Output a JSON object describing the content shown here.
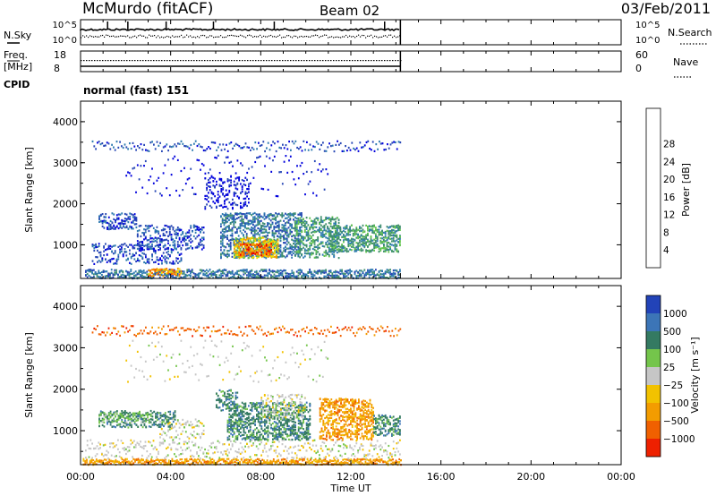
{
  "header": {
    "title": "McMurdo (fitACF)",
    "beam": "Beam 02",
    "date": "03/Feb/2011"
  },
  "status_panels": {
    "nsky_label": "N.Sky",
    "nsearch_label": "N.Search",
    "freq_label": "Freq.",
    "freq_unit": "[MHz]",
    "nave_label": "Nave",
    "cpid_label": "CPID",
    "cpid_text": "normal (fast) 151",
    "noise_ticks": [
      "10^5",
      "10^0"
    ],
    "freq_ticks": [
      "18",
      "8"
    ],
    "nave_ticks": [
      "60",
      "0"
    ]
  },
  "x_axis": {
    "label": "Time UT",
    "ticks": [
      "00:00",
      "04:00",
      "08:00",
      "12:00",
      "16:00",
      "20:00",
      "00:00"
    ]
  },
  "colors": {
    "power": [
      "#0000dd",
      "#2747b5",
      "#2e7bb0",
      "#3f8f6d",
      "#63c44f",
      "#f3dd00",
      "#f39a00",
      "#ff5a00",
      "#e60000"
    ],
    "velocity": [
      "#2243b8",
      "#3c75b7",
      "#347a62",
      "#74c54b",
      "#c6c6c6",
      "#f2c200",
      "#f39c00",
      "#f06000",
      "#ee2000"
    ]
  },
  "chart_data": [
    {
      "type": "heatmap",
      "panel": "power",
      "ylabel": "Slant Range [km]",
      "y_ticks": [
        1000,
        2000,
        3000,
        4000
      ],
      "ylim": [
        180,
        4500
      ],
      "xlim_hours": [
        0,
        24
      ],
      "data_end_hour": 14.2,
      "colorbar_label": "Power [dB]",
      "colorbar_ticks": [
        "4",
        "8",
        "12",
        "16",
        "20",
        "24",
        "28"
      ],
      "color_range": [
        0,
        32
      ],
      "features": [
        {
          "t0": 0.2,
          "t1": 14.2,
          "r0": 200,
          "r1": 420,
          "level": 2,
          "density": 0.75
        },
        {
          "t0": 0.5,
          "t1": 4.5,
          "r0": 550,
          "r1": 1050,
          "level": 1,
          "density": 0.35
        },
        {
          "t0": 0.8,
          "t1": 2.5,
          "r0": 1400,
          "r1": 1800,
          "level": 1,
          "density": 0.45
        },
        {
          "t0": 2.5,
          "t1": 5.5,
          "r0": 900,
          "r1": 1500,
          "level": 1,
          "density": 0.4
        },
        {
          "t0": 3.0,
          "t1": 4.5,
          "r0": 250,
          "r1": 450,
          "level": 6,
          "density": 0.55
        },
        {
          "t0": 5.5,
          "t1": 7.5,
          "r0": 1900,
          "r1": 2700,
          "level": 0,
          "density": 0.3
        },
        {
          "t0": 6.2,
          "t1": 9.8,
          "r0": 700,
          "r1": 1800,
          "level": 2,
          "density": 0.6
        },
        {
          "t0": 6.8,
          "t1": 8.8,
          "r0": 700,
          "r1": 1200,
          "level": 5,
          "density": 0.75
        },
        {
          "t0": 7.0,
          "t1": 8.5,
          "r0": 750,
          "r1": 1050,
          "level": 7,
          "density": 0.7
        },
        {
          "t0": 9.5,
          "t1": 11.5,
          "r0": 700,
          "r1": 1700,
          "level": 3,
          "density": 0.55
        },
        {
          "t0": 11.0,
          "t1": 14.2,
          "r0": 850,
          "r1": 1500,
          "level": 3,
          "density": 0.7
        },
        {
          "t0": 0.5,
          "t1": 14.2,
          "r0": 3300,
          "r1": 3550,
          "level": 1,
          "density": 0.1
        },
        {
          "t0": 2.0,
          "t1": 11.0,
          "r0": 2200,
          "r1": 3200,
          "level": 0,
          "density": 0.05
        }
      ]
    },
    {
      "type": "heatmap",
      "panel": "velocity",
      "ylabel": "Slant Range [km]",
      "y_ticks": [
        1000,
        2000,
        3000,
        4000
      ],
      "ylim": [
        180,
        4500
      ],
      "xlim_hours": [
        0,
        24
      ],
      "data_end_hour": 14.2,
      "colorbar_label": "Velocity [m s⁻¹]",
      "colorbar_ticks": [
        "1000",
        "500",
        "100",
        "25",
        "−25",
        "−100",
        "−500",
        "−1000"
      ],
      "color_range": [
        -1250,
        1250
      ],
      "features": [
        {
          "t0": 0.1,
          "t1": 14.2,
          "r0": 200,
          "r1": 340,
          "level": 6,
          "density": 0.95
        },
        {
          "t0": 0.2,
          "t1": 14.2,
          "r0": 350,
          "r1": 800,
          "level": 4,
          "density": 0.15
        },
        {
          "t0": 0.8,
          "t1": 4.2,
          "r0": 1100,
          "r1": 1500,
          "level": 2,
          "density": 0.55
        },
        {
          "t0": 0.8,
          "t1": 3.0,
          "r0": 1200,
          "r1": 1450,
          "level": 3,
          "density": 0.35
        },
        {
          "t0": 3.5,
          "t1": 5.5,
          "r0": 800,
          "r1": 1300,
          "level": 4,
          "density": 0.25
        },
        {
          "t0": 6.0,
          "t1": 7.0,
          "r0": 1500,
          "r1": 2000,
          "level": 2,
          "density": 0.5
        },
        {
          "t0": 6.5,
          "t1": 10.2,
          "r0": 800,
          "r1": 1700,
          "level": 2,
          "density": 0.7
        },
        {
          "t0": 8.0,
          "t1": 10.0,
          "r0": 1300,
          "r1": 1900,
          "level": 4,
          "density": 0.35
        },
        {
          "t0": 10.6,
          "t1": 13.0,
          "r0": 800,
          "r1": 1800,
          "level": 6,
          "density": 0.7
        },
        {
          "t0": 13.0,
          "t1": 14.2,
          "r0": 900,
          "r1": 1400,
          "level": 2,
          "density": 0.65
        },
        {
          "t0": 0.5,
          "t1": 14.2,
          "r0": 3300,
          "r1": 3550,
          "level": 7,
          "density": 0.08
        },
        {
          "t0": 2.0,
          "t1": 11.0,
          "r0": 2200,
          "r1": 3200,
          "level": 4,
          "density": 0.04
        }
      ]
    }
  ]
}
